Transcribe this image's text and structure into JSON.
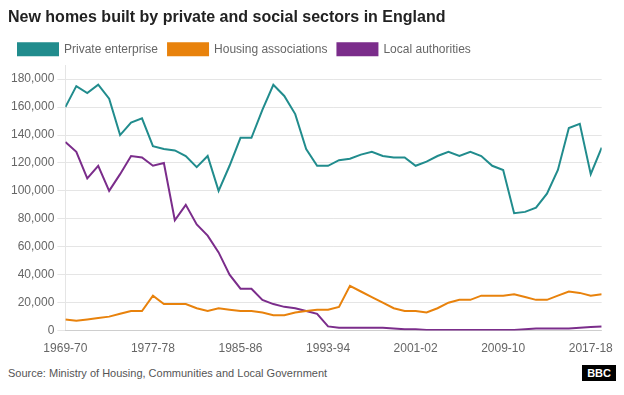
{
  "chart_data": {
    "type": "line",
    "title": "New homes built by private and social sectors in England",
    "annotations": [
      "Source: Ministry of Housing, Communities and Local Government",
      "BBC"
    ],
    "x": [
      1969,
      1970,
      1971,
      1972,
      1973,
      1974,
      1975,
      1976,
      1977,
      1978,
      1979,
      1980,
      1981,
      1982,
      1983,
      1984,
      1985,
      1986,
      1987,
      1988,
      1989,
      1990,
      1991,
      1992,
      1993,
      1994,
      1995,
      1996,
      1997,
      1998,
      1999,
      2000,
      2001,
      2002,
      2003,
      2004,
      2005,
      2006,
      2007,
      2008,
      2009,
      2010,
      2011,
      2012,
      2013,
      2014,
      2015,
      2016,
      2017,
      2018
    ],
    "series": [
      {
        "name": "Private enterprise",
        "color": "#218c8d",
        "values": [
          160000,
          175000,
          170000,
          176000,
          166000,
          140000,
          149000,
          152000,
          132000,
          130000,
          129000,
          125000,
          117000,
          125000,
          100000,
          118000,
          138000,
          138000,
          158000,
          176000,
          168000,
          155000,
          130000,
          118000,
          118000,
          122000,
          123000,
          126000,
          128000,
          125000,
          124000,
          124000,
          118000,
          121000,
          125000,
          128000,
          125000,
          128000,
          125000,
          118000,
          115000,
          84000,
          85000,
          88000,
          98000,
          115000,
          145000,
          148000,
          112000,
          131000
        ]
      },
      {
        "name": "Housing associations",
        "color": "#e8820c",
        "values": [
          8000,
          7000,
          8000,
          9000,
          10000,
          12000,
          14000,
          14000,
          25000,
          19000,
          19000,
          19000,
          16000,
          14000,
          16000,
          15000,
          14000,
          14000,
          13000,
          11000,
          11000,
          13000,
          14000,
          15000,
          15000,
          17000,
          32000,
          28000,
          24000,
          20000,
          16000,
          14000,
          14000,
          13000,
          16000,
          20000,
          22000,
          22000,
          25000,
          25000,
          25000,
          26000,
          24000,
          22000,
          22000,
          25000,
          28000,
          27000,
          25000,
          26000
        ]
      },
      {
        "name": "Local authorities",
        "color": "#7b2d8b",
        "values": [
          135000,
          128000,
          109000,
          118000,
          100000,
          112000,
          125000,
          124000,
          118000,
          120000,
          79000,
          90000,
          76000,
          68000,
          56000,
          40000,
          30000,
          30000,
          22000,
          19000,
          17000,
          16000,
          14000,
          12000,
          3000,
          2000,
          2000,
          2000,
          2000,
          2000,
          1500,
          1000,
          1000,
          500,
          500,
          500,
          500,
          500,
          500,
          500,
          500,
          500,
          1000,
          1500,
          1500,
          1500,
          1500,
          2000,
          2500,
          3000
        ]
      }
    ],
    "xlim": [
      1969,
      2018
    ],
    "xticks": [
      {
        "value": 1969,
        "label": "1969-70"
      },
      {
        "value": 1977,
        "label": "1977-78"
      },
      {
        "value": 1985,
        "label": "1985-86"
      },
      {
        "value": 1993,
        "label": "1993-94"
      },
      {
        "value": 2001,
        "label": "2001-02"
      },
      {
        "value": 2009,
        "label": "2009-10"
      },
      {
        "value": 2017,
        "label": "2017-18"
      }
    ],
    "ylim": [
      0,
      190000
    ],
    "yticks": [
      0,
      {
        "value": 20000,
        "label": "20,000"
      },
      {
        "value": 40000,
        "label": "40,000"
      },
      {
        "value": 60000,
        "label": "60,000"
      },
      {
        "value": 80000,
        "label": "80,000"
      },
      {
        "value": 100000,
        "label": "100,000"
      },
      {
        "value": 120000,
        "label": "120,000"
      },
      {
        "value": 140000,
        "label": "140,000"
      },
      {
        "value": 160000,
        "label": "160,000"
      },
      {
        "value": 180000,
        "label": "180,000"
      }
    ],
    "grid": "y",
    "legend": "upper left"
  }
}
